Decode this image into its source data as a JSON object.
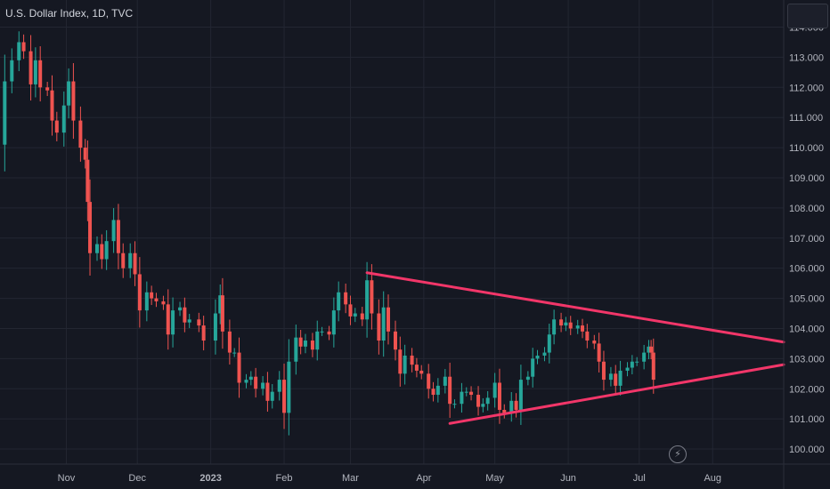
{
  "header": {
    "symbol_label": "U.S. Dollar Index, 1D, TVC"
  },
  "chart_data": {
    "type": "candlestick",
    "title": "U.S. Dollar Index, 1D, TVC",
    "y_axis": {
      "min": 99.5,
      "max": 114.9,
      "position": "right",
      "ticks": [
        "114.000",
        "113.000",
        "112.000",
        "111.000",
        "110.000",
        "109.000",
        "108.000",
        "107.000",
        "106.000",
        "105.000",
        "104.000",
        "103.000",
        "102.000",
        "101.000",
        "100.000"
      ]
    },
    "x_axis": {
      "start": "2022-10-04",
      "end": "2023-08-31",
      "labels": [
        {
          "date": "2022-11-01",
          "text": "Nov",
          "bold": false
        },
        {
          "date": "2022-12-01",
          "text": "Dec",
          "bold": false
        },
        {
          "date": "2023-01-01",
          "text": "2023",
          "bold": true
        },
        {
          "date": "2023-02-01",
          "text": "Feb",
          "bold": false
        },
        {
          "date": "2023-03-01",
          "text": "Mar",
          "bold": false
        },
        {
          "date": "2023-04-01",
          "text": "Apr",
          "bold": false
        },
        {
          "date": "2023-05-01",
          "text": "May",
          "bold": false
        },
        {
          "date": "2023-06-01",
          "text": "Jun",
          "bold": false
        },
        {
          "date": "2023-07-01",
          "text": "Jul",
          "bold": false
        },
        {
          "date": "2023-08-01",
          "text": "Aug",
          "bold": false
        }
      ]
    },
    "grid": true,
    "colors": {
      "up": "#26a69a",
      "down": "#ef5350",
      "trendline": "#f23669",
      "grid": "#232632",
      "background": "#151822",
      "axis_text": "#b2b5be"
    },
    "candle_closes": [
      [
        "2022-10-04",
        110.1
      ],
      [
        "2022-10-06",
        112.2
      ],
      [
        "2022-10-09",
        112.9
      ],
      [
        "2022-10-12",
        113.5
      ],
      [
        "2022-10-14",
        113.2
      ],
      [
        "2022-10-17",
        112.1
      ],
      [
        "2022-10-19",
        112.9
      ],
      [
        "2022-10-21",
        112.0
      ],
      [
        "2022-10-24",
        111.9
      ],
      [
        "2022-10-26",
        110.9
      ],
      [
        "2022-10-28",
        110.5
      ],
      [
        "2022-10-31",
        111.4
      ],
      [
        "2022-11-02",
        112.2
      ],
      [
        "2022-11-04",
        110.9
      ],
      [
        "2022-11-07",
        110.0
      ],
      [
        "2022-11-09",
        109.6
      ],
      [
        "2022-11-10",
        108.2
      ],
      [
        "2022-11-11",
        106.5
      ],
      [
        "2022-11-14",
        106.8
      ],
      [
        "2022-11-16",
        106.3
      ],
      [
        "2022-11-18",
        106.9
      ],
      [
        "2022-11-21",
        107.6
      ],
      [
        "2022-11-23",
        106.5
      ],
      [
        "2022-11-25",
        106.0
      ],
      [
        "2022-11-28",
        106.5
      ],
      [
        "2022-11-30",
        105.8
      ],
      [
        "2022-12-02",
        104.6
      ],
      [
        "2022-12-05",
        105.2
      ],
      [
        "2022-12-07",
        105.0
      ],
      [
        "2022-12-09",
        104.9
      ],
      [
        "2022-12-12",
        104.8
      ],
      [
        "2022-12-14",
        103.8
      ],
      [
        "2022-12-16",
        104.6
      ],
      [
        "2022-12-19",
        104.7
      ],
      [
        "2022-12-21",
        104.2
      ],
      [
        "2022-12-23",
        104.3
      ],
      [
        "2022-12-27",
        104.1
      ],
      [
        "2022-12-29",
        103.6
      ],
      [
        "2023-01-03",
        104.5
      ],
      [
        "2023-01-05",
        105.1
      ],
      [
        "2023-01-06",
        103.9
      ],
      [
        "2023-01-09",
        103.2
      ],
      [
        "2023-01-11",
        103.2
      ],
      [
        "2023-01-13",
        102.2
      ],
      [
        "2023-01-16",
        102.3
      ],
      [
        "2023-01-18",
        102.4
      ],
      [
        "2023-01-20",
        102.0
      ],
      [
        "2023-01-23",
        102.2
      ],
      [
        "2023-01-25",
        101.6
      ],
      [
        "2023-01-27",
        101.9
      ],
      [
        "2023-01-30",
        102.3
      ],
      [
        "2023-02-01",
        101.2
      ],
      [
        "2023-02-03",
        102.9
      ],
      [
        "2023-02-06",
        103.7
      ],
      [
        "2023-02-08",
        103.4
      ],
      [
        "2023-02-10",
        103.6
      ],
      [
        "2023-02-13",
        103.3
      ],
      [
        "2023-02-15",
        103.9
      ],
      [
        "2023-02-17",
        103.9
      ],
      [
        "2023-02-20",
        103.8
      ],
      [
        "2023-02-22",
        104.6
      ],
      [
        "2023-02-24",
        105.2
      ],
      [
        "2023-02-27",
        104.8
      ],
      [
        "2023-03-01",
        104.4
      ],
      [
        "2023-03-03",
        104.5
      ],
      [
        "2023-03-06",
        104.3
      ],
      [
        "2023-03-08",
        105.6
      ],
      [
        "2023-03-10",
        104.5
      ],
      [
        "2023-03-13",
        103.6
      ],
      [
        "2023-03-15",
        104.7
      ],
      [
        "2023-03-17",
        103.9
      ],
      [
        "2023-03-20",
        103.3
      ],
      [
        "2023-03-22",
        102.5
      ],
      [
        "2023-03-24",
        103.1
      ],
      [
        "2023-03-27",
        102.8
      ],
      [
        "2023-03-29",
        102.6
      ],
      [
        "2023-03-31",
        102.5
      ],
      [
        "2023-04-03",
        102.0
      ],
      [
        "2023-04-05",
        101.8
      ],
      [
        "2023-04-07",
        102.1
      ],
      [
        "2023-04-10",
        102.4
      ],
      [
        "2023-04-12",
        101.5
      ],
      [
        "2023-04-14",
        101.5
      ],
      [
        "2023-04-17",
        101.9
      ],
      [
        "2023-04-19",
        101.9
      ],
      [
        "2023-04-21",
        101.8
      ],
      [
        "2023-04-24",
        101.4
      ],
      [
        "2023-04-26",
        101.5
      ],
      [
        "2023-04-28",
        101.7
      ],
      [
        "2023-05-01",
        102.2
      ],
      [
        "2023-05-03",
        101.3
      ],
      [
        "2023-05-05",
        101.2
      ],
      [
        "2023-05-08",
        101.6
      ],
      [
        "2023-05-10",
        101.3
      ],
      [
        "2023-05-12",
        102.3
      ],
      [
        "2023-05-15",
        102.4
      ],
      [
        "2023-05-17",
        103.0
      ],
      [
        "2023-05-19",
        103.1
      ],
      [
        "2023-05-22",
        103.2
      ],
      [
        "2023-05-24",
        103.8
      ],
      [
        "2023-05-26",
        104.3
      ],
      [
        "2023-05-29",
        104.1
      ],
      [
        "2023-05-31",
        104.2
      ],
      [
        "2023-06-02",
        104.0
      ],
      [
        "2023-06-05",
        104.1
      ],
      [
        "2023-06-07",
        103.9
      ],
      [
        "2023-06-09",
        103.6
      ],
      [
        "2023-06-12",
        103.5
      ],
      [
        "2023-06-14",
        102.9
      ],
      [
        "2023-06-16",
        102.3
      ],
      [
        "2023-06-19",
        102.5
      ],
      [
        "2023-06-21",
        102.1
      ],
      [
        "2023-06-23",
        102.6
      ],
      [
        "2023-06-26",
        102.7
      ],
      [
        "2023-06-28",
        102.9
      ],
      [
        "2023-06-30",
        102.9
      ],
      [
        "2023-07-03",
        103.2
      ],
      [
        "2023-07-05",
        103.4
      ],
      [
        "2023-07-06",
        103.2
      ],
      [
        "2023-07-07",
        102.3
      ]
    ],
    "trendlines": [
      {
        "name": "upper",
        "from": [
          "2023-03-08",
          105.85
        ],
        "to": [
          "2023-08-31",
          103.55
        ]
      },
      {
        "name": "lower",
        "from": [
          "2023-04-12",
          100.85
        ],
        "to": [
          "2023-08-31",
          102.8
        ]
      }
    ]
  }
}
